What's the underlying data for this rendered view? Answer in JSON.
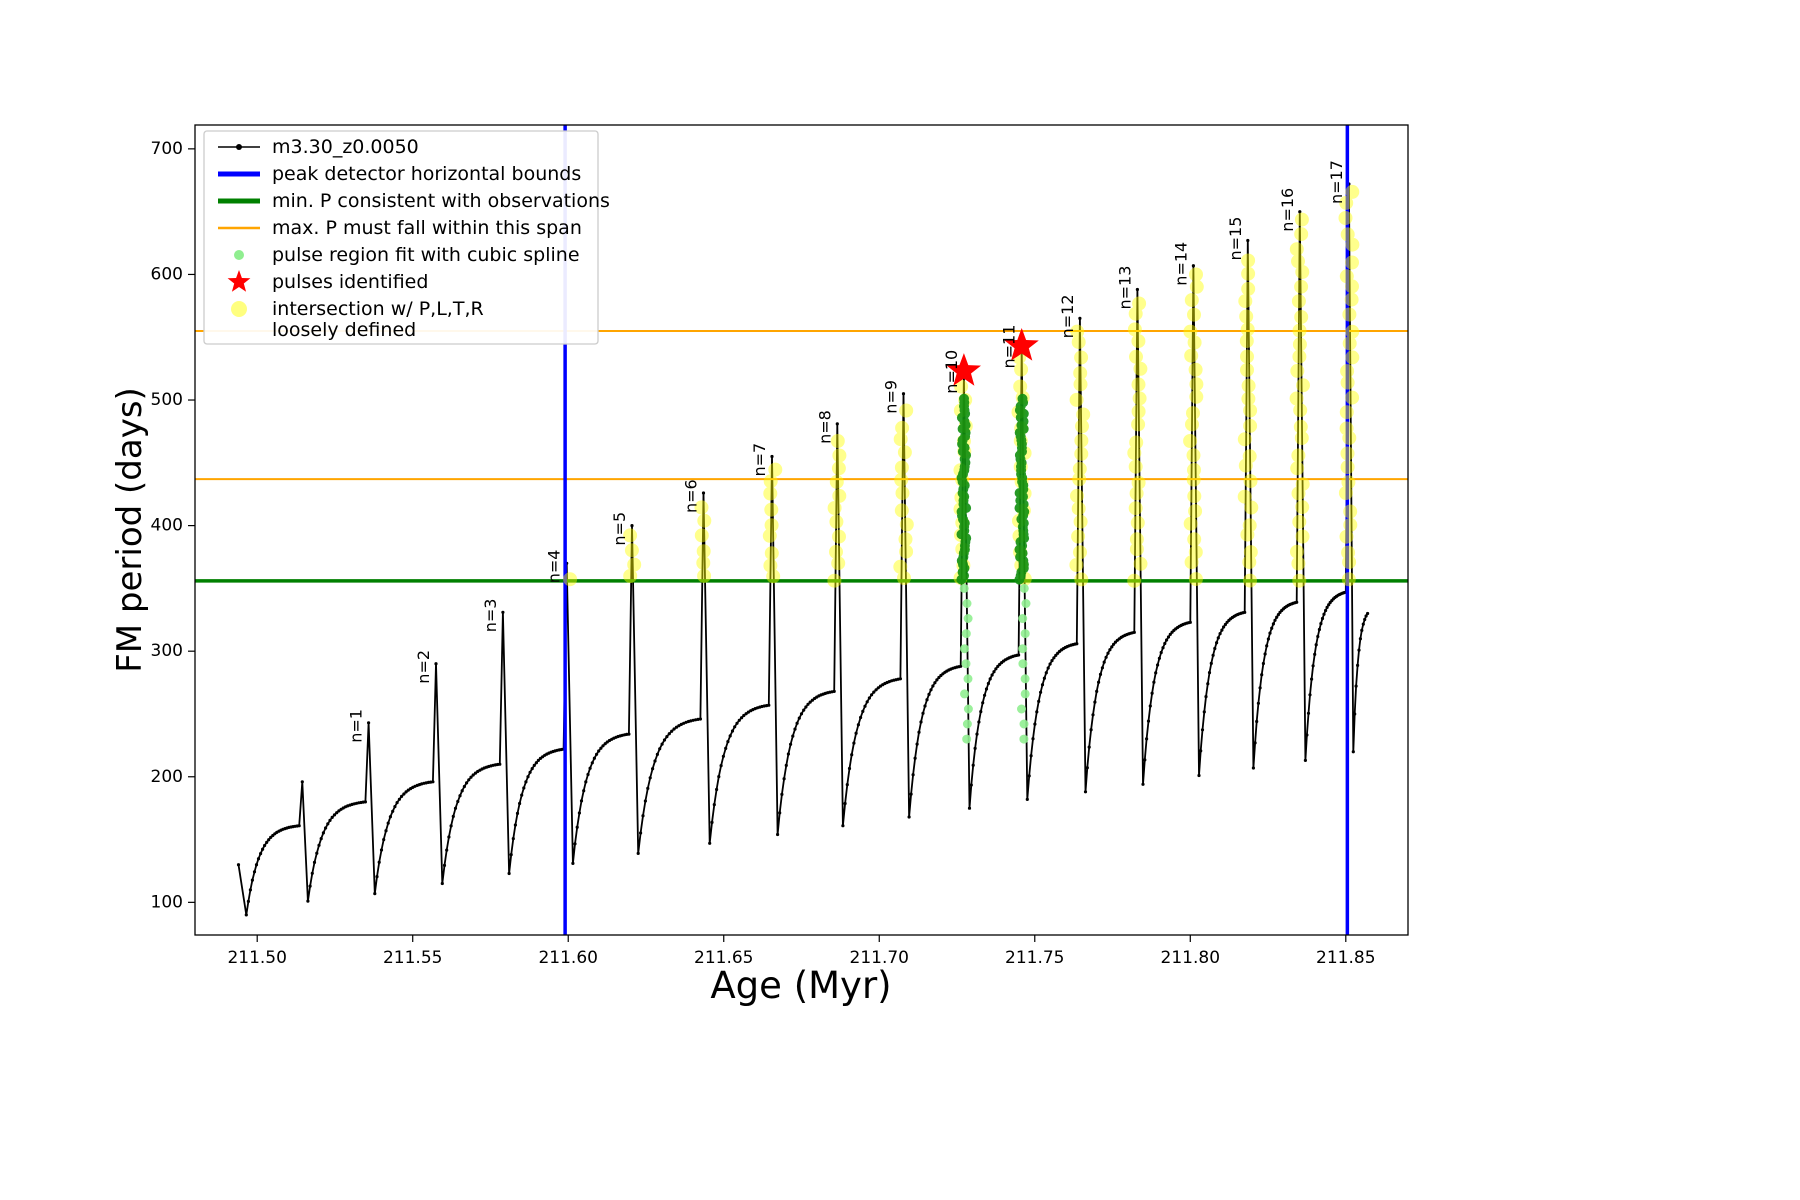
{
  "chart_data": {
    "type": "line",
    "title": "",
    "xlabel": "Age (Myr)",
    "ylabel": "FM period (days)",
    "xlim": [
      211.48,
      211.87
    ],
    "ylim": [
      74,
      719
    ],
    "grid": false,
    "xticks": {
      "values": [
        211.5,
        211.55,
        211.6,
        211.65,
        211.7,
        211.75,
        211.8,
        211.85
      ],
      "labels": [
        "211.50",
        "211.55",
        "211.60",
        "211.65",
        "211.70",
        "211.75",
        "211.80",
        "211.85"
      ]
    },
    "yticks": {
      "values": [
        100,
        200,
        300,
        400,
        500,
        600,
        700
      ],
      "labels": [
        "100",
        "200",
        "300",
        "400",
        "500",
        "600",
        "700"
      ]
    },
    "main_series": {
      "name": "m3.30_z0.0050",
      "color": "#000000",
      "spike_width": 0.001,
      "start": {
        "x": 211.494,
        "y": 130
      },
      "cycles": [
        {
          "label": null,
          "trough_x": 211.4965,
          "trough_y": 90,
          "sat_y": 161,
          "peak_x": 211.5145,
          "peak_y": 196
        },
        {
          "label": "n=1",
          "trough_x": 211.5163,
          "trough_y": 101,
          "sat_y": 180,
          "peak_x": 211.5358,
          "peak_y": 243
        },
        {
          "label": "n=2",
          "trough_x": 211.5378,
          "trough_y": 107,
          "sat_y": 196,
          "peak_x": 211.5575,
          "peak_y": 290
        },
        {
          "label": "n=3",
          "trough_x": 211.5595,
          "trough_y": 115,
          "sat_y": 210,
          "peak_x": 211.579,
          "peak_y": 331
        },
        {
          "label": "n=4",
          "trough_x": 211.581,
          "trough_y": 123,
          "sat_y": 222,
          "peak_x": 211.5995,
          "peak_y": 370
        },
        {
          "label": "n=5",
          "trough_x": 211.6015,
          "trough_y": 131,
          "sat_y": 234,
          "peak_x": 211.6205,
          "peak_y": 400
        },
        {
          "label": "n=6",
          "trough_x": 211.6225,
          "trough_y": 139,
          "sat_y": 246,
          "peak_x": 211.6435,
          "peak_y": 426
        },
        {
          "label": "n=7",
          "trough_x": 211.6455,
          "trough_y": 147,
          "sat_y": 257,
          "peak_x": 211.6655,
          "peak_y": 455
        },
        {
          "label": "n=8",
          "trough_x": 211.6673,
          "trough_y": 154,
          "sat_y": 268,
          "peak_x": 211.6865,
          "peak_y": 481
        },
        {
          "label": "n=9",
          "trough_x": 211.6883,
          "trough_y": 161,
          "sat_y": 278,
          "peak_x": 211.7078,
          "peak_y": 505
        },
        {
          "label": "n=10",
          "trough_x": 211.7096,
          "trough_y": 168,
          "sat_y": 288,
          "peak_x": 211.7272,
          "peak_y": 521
        },
        {
          "label": "n=11",
          "trough_x": 211.729,
          "trough_y": 175,
          "sat_y": 297,
          "peak_x": 211.7458,
          "peak_y": 541
        },
        {
          "label": "n=12",
          "trough_x": 211.7476,
          "trough_y": 182,
          "sat_y": 306,
          "peak_x": 211.7645,
          "peak_y": 565
        },
        {
          "label": "n=13",
          "trough_x": 211.7663,
          "trough_y": 188,
          "sat_y": 315,
          "peak_x": 211.783,
          "peak_y": 588
        },
        {
          "label": "n=14",
          "trough_x": 211.7848,
          "trough_y": 194,
          "sat_y": 323,
          "peak_x": 211.801,
          "peak_y": 607
        },
        {
          "label": "n=15",
          "trough_x": 211.8028,
          "trough_y": 201,
          "sat_y": 331,
          "peak_x": 211.8185,
          "peak_y": 627
        },
        {
          "label": "n=16",
          "trough_x": 211.8203,
          "trough_y": 207,
          "sat_y": 339,
          "peak_x": 211.8352,
          "peak_y": 650
        },
        {
          "label": "n=17",
          "trough_x": 211.837,
          "trough_y": 213,
          "sat_y": 347,
          "peak_x": 211.851,
          "peak_y": 672
        }
      ],
      "tail": {
        "trough_x": 211.8524,
        "trough_y": 220,
        "end_x": 211.857,
        "end_y": 330
      }
    },
    "hlines": [
      {
        "name": "min-p-consistent-with-observations",
        "y": 356,
        "color": "#008000",
        "lw": 3.5
      },
      {
        "name": "max-p-span-lower",
        "y": 437,
        "color": "#ffa500",
        "lw": 2
      },
      {
        "name": "max-p-span-upper",
        "y": 555,
        "color": "#ffa500",
        "lw": 2
      }
    ],
    "vlines": [
      {
        "name": "peak-detector-left-bound",
        "x": 211.599,
        "color": "#0000ff",
        "lw": 3.5
      },
      {
        "name": "peak-detector-right-bound",
        "x": 211.8505,
        "color": "#0000ff",
        "lw": 3.5
      }
    ],
    "intersection_markers": {
      "color": "#ffff00",
      "opacity": 0.45,
      "radius": 7,
      "y_start": 358,
      "y_step": 11,
      "peaks": [
        "n=4",
        "n=5",
        "n=6",
        "n=7",
        "n=8",
        "n=9",
        "n=10",
        "n=11",
        "n=12",
        "n=13",
        "n=14",
        "n=15",
        "n=16",
        "n=17"
      ]
    },
    "spline_fit_markers": {
      "color": "#0f8f0f",
      "opacity": 0.9,
      "radius": 5,
      "y_from": 357,
      "y_to": 501,
      "y_step": 3,
      "peaks": [
        "n=10",
        "n=11"
      ]
    },
    "pulse_region_markers": {
      "color": "#90ee90",
      "opacity": 0.9,
      "radius": 4.5,
      "y_from": 230,
      "y_to": 351,
      "y_step": 12,
      "peaks": [
        "n=10",
        "n=11"
      ]
    },
    "pulses_identified": {
      "color": "#ff0000",
      "outer_radius": 18,
      "inner_radius": 7.5,
      "points": [
        {
          "x": 211.7272,
          "y": 523
        },
        {
          "x": 211.7458,
          "y": 543
        }
      ]
    },
    "legend": {
      "position": "upper left",
      "entries": [
        {
          "type": "line-dot",
          "color": "#000000",
          "lw": 1.5,
          "label": "m3.30_z0.0050"
        },
        {
          "type": "line",
          "color": "#0000ff",
          "lw": 5,
          "label": "peak detector horizontal bounds"
        },
        {
          "type": "line",
          "color": "#008000",
          "lw": 5,
          "label": "min. P consistent with observations"
        },
        {
          "type": "line",
          "color": "#ffa500",
          "lw": 2.5,
          "label": "max. P must fall within this span"
        },
        {
          "type": "dot",
          "color": "#90ee90",
          "r": 5,
          "opacity": 1,
          "label": "pulse region fit with cubic spline"
        },
        {
          "type": "star",
          "color": "#ff0000",
          "label": "pulses identified"
        },
        {
          "type": "dot",
          "color": "#ffff00",
          "r": 8,
          "opacity": 0.5,
          "label": "intersection w/ P,L,T,R",
          "label2": "loosely defined"
        }
      ]
    }
  }
}
